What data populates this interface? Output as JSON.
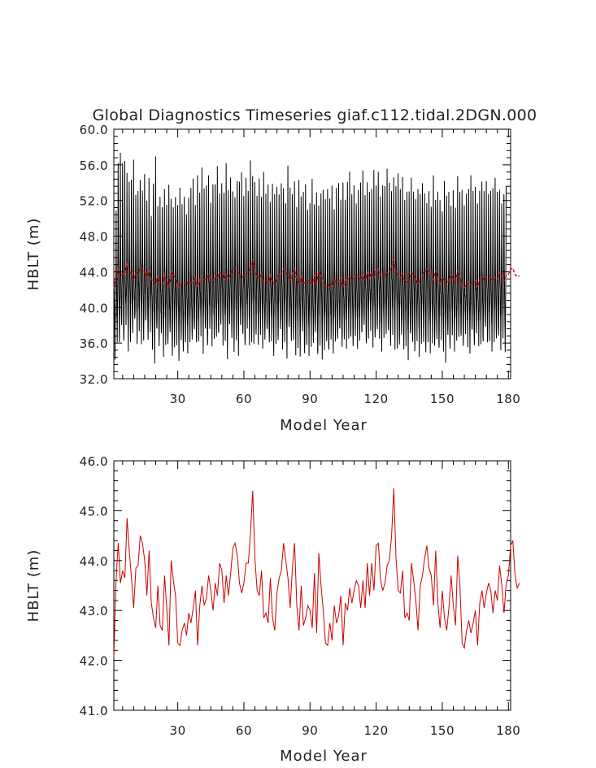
{
  "chart_data": [
    {
      "type": "line",
      "title": "Global Diagnostics Timeseries giaf.c112.tidal.2DGN.000",
      "xlabel": "Model Year",
      "ylabel": "HBLT (m)",
      "xlim": [
        1,
        181
      ],
      "ylim": [
        32,
        60
      ],
      "xticks": [
        30,
        60,
        90,
        120,
        150,
        180
      ],
      "yticks": [
        32,
        36,
        40,
        44,
        48,
        52,
        56,
        60
      ],
      "xtick_labels": [
        "30",
        "60",
        "90",
        "120",
        "150",
        "180"
      ],
      "ytick_labels": [
        "32.0",
        "36.0",
        "40.0",
        "44.0",
        "48.0",
        "52.0",
        "56.0",
        "60.0"
      ],
      "grid": false,
      "series": [
        {
          "color": "#000000",
          "style": "monthly",
          "months_per_year": 12,
          "summer_peak_values": [
            46.0,
            55.5,
            57.0,
            56.2,
            56.8,
            55.8,
            53.2,
            53.8,
            56.4,
            52.8,
            53.6,
            55.2,
            52.4,
            54.6,
            52.0,
            54.9,
            51.0,
            53.0,
            56.4,
            51.2,
            52.6,
            51.8,
            54.2,
            50.8,
            53.4,
            52.2,
            51.6,
            53.1,
            50.6,
            52.9,
            51.4,
            52.6,
            51.0,
            53.2,
            52.7,
            54.1,
            51.5,
            55.2,
            53.6,
            54.8,
            52.8,
            53.5,
            55.0,
            52.3,
            54.7,
            53.1,
            55.5,
            52.8,
            54.3,
            53.6,
            55.3,
            52.6,
            54.4,
            53.2,
            52.9,
            55.1,
            53.4,
            54.8,
            52.5,
            54.9,
            53.8,
            55.6,
            54.2,
            53.9,
            52.7,
            55.0,
            53.3,
            54.5,
            52.4,
            53.8,
            52.2,
            54.6,
            51.8,
            53.0,
            52.5,
            54.1,
            53.9,
            52.6,
            55.2,
            53.1,
            52.7,
            54.5,
            52.0,
            53.4,
            51.9,
            52.8,
            54.0,
            51.5,
            52.6,
            53.7,
            51.2,
            52.9,
            51.8,
            53.5,
            52.3,
            51.6,
            53.1,
            52.4,
            54.2,
            51.9,
            52.7,
            53.6,
            52.1,
            54.4,
            52.8,
            53.2,
            54.7,
            52.5,
            53.9,
            52.2,
            54.1,
            53.3,
            55.0,
            52.6,
            54.4,
            53.7,
            52.4,
            54.9,
            53.5,
            55.4,
            53.0,
            54.6,
            52.9,
            55.2,
            54.0,
            53.4,
            55.3,
            52.7,
            54.5,
            53.1,
            54.8,
            52.6,
            53.9,
            52.3,
            54.2,
            53.0,
            52.5,
            54.0,
            51.8,
            53.4,
            52.6,
            51.9,
            53.6,
            52.2,
            54.1,
            51.7,
            53.0,
            52.4,
            51.5,
            53.3,
            52.0,
            52.8,
            51.6,
            53.7,
            52.1,
            54.0,
            52.6,
            53.2,
            51.8,
            53.5,
            52.4,
            54.3,
            52.9,
            53.7,
            52.2,
            54.0,
            53.4,
            52.7,
            54.2,
            53.1,
            53.8,
            52.5,
            54.0,
            52.8,
            53.4,
            52.2,
            53.6,
            52.9,
            53.3
          ],
          "winter_trough_values": [
            34.5,
            36.8,
            35.2,
            37.5,
            36.1,
            38.2,
            35.6,
            37.0,
            36.4,
            38.5,
            35.9,
            37.7,
            36.6,
            35.4,
            38.0,
            36.2,
            37.4,
            35.8,
            34.6,
            36.9,
            35.3,
            37.1,
            34.8,
            36.5,
            35.0,
            36.7,
            34.4,
            35.7,
            36.3,
            34.9,
            35.6,
            34.7,
            36.1,
            35.2,
            36.8,
            35.5,
            37.0,
            35.9,
            36.4,
            37.3,
            35.7,
            36.9,
            35.4,
            37.6,
            36.0,
            37.2,
            35.8,
            36.6,
            37.9,
            35.9,
            36.8,
            35.1,
            37.4,
            36.2,
            35.0,
            36.7,
            35.3,
            37.1,
            36.5,
            35.6,
            37.8,
            36.3,
            37.0,
            35.2,
            36.6,
            35.8,
            37.3,
            36.1,
            35.5,
            37.0,
            35.9,
            36.4,
            35.1,
            36.8,
            35.6,
            37.2,
            35.3,
            36.5,
            35.0,
            36.9,
            35.7,
            36.2,
            34.8,
            36.0,
            35.4,
            36.6,
            34.5,
            35.8,
            34.9,
            36.3,
            35.1,
            36.7,
            34.6,
            35.9,
            34.7,
            36.1,
            35.5,
            34.9,
            36.4,
            35.2,
            36.9,
            35.6,
            37.1,
            35.4,
            36.6,
            35.9,
            37.4,
            36.0,
            35.3,
            36.8,
            35.7,
            37.0,
            36.3,
            37.5,
            35.8,
            36.7,
            37.9,
            36.4,
            35.9,
            37.2,
            36.5,
            35.4,
            37.3,
            36.1,
            36.9,
            35.5,
            37.1,
            35.8,
            36.3,
            35.1,
            36.6,
            35.3,
            36.0,
            34.8,
            36.2,
            35.6,
            34.9,
            36.4,
            35.0,
            36.8,
            35.4,
            34.6,
            36.1,
            35.2,
            36.7,
            34.8,
            35.9,
            35.3,
            36.5,
            35.6,
            34.7,
            36.2,
            35.0,
            36.9,
            35.4,
            37.0,
            35.8,
            36.3,
            35.5,
            37.2,
            36.1,
            35.7,
            36.8,
            35.4,
            37.1,
            36.0,
            36.6,
            35.3,
            37.3,
            35.9,
            36.4,
            35.6,
            37.0,
            35.8,
            36.5,
            35.2,
            36.9,
            35.7
          ]
        },
        {
          "color": "#cc0000",
          "series_ref": "annual_mean"
        }
      ]
    },
    {
      "type": "line",
      "xlabel": "Model Year",
      "ylabel": "HBLT (m)",
      "xlim": [
        1,
        181
      ],
      "ylim": [
        41,
        46
      ],
      "xticks": [
        30,
        60,
        90,
        120,
        150,
        180
      ],
      "yticks": [
        41,
        42,
        43,
        44,
        45,
        46
      ],
      "xtick_labels": [
        "30",
        "60",
        "90",
        "120",
        "150",
        "180"
      ],
      "ytick_labels": [
        "41.0",
        "42.0",
        "43.0",
        "44.0",
        "45.0",
        "46.0"
      ],
      "grid": false,
      "series": [
        {
          "color": "#cc0000",
          "x_start": 1,
          "x_step": 1,
          "values": [
            42.05,
            43.6,
            44.35,
            43.55,
            43.8,
            43.65,
            44.85,
            44.2,
            43.65,
            43.05,
            43.85,
            43.9,
            44.5,
            44.35,
            44.0,
            43.3,
            44.2,
            43.15,
            42.85,
            42.65,
            43.5,
            42.7,
            42.6,
            43.7,
            43.05,
            42.3,
            44.0,
            43.6,
            43.3,
            42.35,
            42.3,
            42.6,
            42.75,
            42.5,
            42.95,
            42.75,
            43.05,
            43.4,
            42.3,
            43.1,
            43.5,
            43.1,
            43.25,
            43.7,
            43.4,
            43.0,
            43.55,
            43.3,
            43.95,
            43.8,
            43.15,
            43.7,
            43.3,
            43.75,
            44.25,
            44.35,
            44.1,
            43.55,
            43.35,
            43.55,
            43.95,
            43.95,
            44.55,
            45.4,
            44.05,
            43.4,
            43.3,
            43.8,
            42.85,
            42.95,
            42.75,
            43.65,
            42.85,
            42.6,
            43.35,
            43.65,
            43.8,
            44.35,
            44.0,
            43.65,
            43.05,
            43.85,
            44.35,
            43.1,
            42.6,
            43.5,
            42.7,
            42.85,
            43.1,
            43.0,
            42.65,
            43.75,
            42.55,
            44.15,
            43.5,
            43.0,
            42.35,
            42.3,
            42.75,
            42.4,
            43.1,
            42.75,
            42.9,
            43.3,
            42.3,
            43.15,
            43.0,
            43.45,
            43.15,
            43.4,
            43.6,
            43.5,
            43.05,
            43.6,
            43.05,
            43.95,
            43.3,
            43.95,
            43.4,
            44.3,
            44.35,
            43.6,
            43.4,
            43.55,
            43.9,
            44.0,
            44.5,
            45.45,
            44.05,
            43.4,
            43.35,
            43.8,
            42.85,
            42.95,
            42.8,
            43.95,
            43.6,
            43.2,
            42.6,
            43.5,
            43.7,
            44.05,
            44.3,
            43.85,
            43.7,
            43.1,
            44.2,
            43.15,
            42.65,
            43.4,
            42.85,
            42.6,
            43.05,
            43.7,
            43.1,
            42.7,
            44.1,
            43.5,
            42.35,
            42.25,
            42.6,
            42.8,
            42.55,
            42.75,
            43.0,
            42.3,
            43.15,
            43.4,
            43.05,
            43.35,
            43.55,
            43.4,
            42.95,
            43.4,
            43.2,
            43.9,
            43.5,
            42.95,
            43.55,
            43.7,
            44.3,
            44.4,
            43.7,
            43.45,
            43.55
          ]
        }
      ]
    }
  ]
}
